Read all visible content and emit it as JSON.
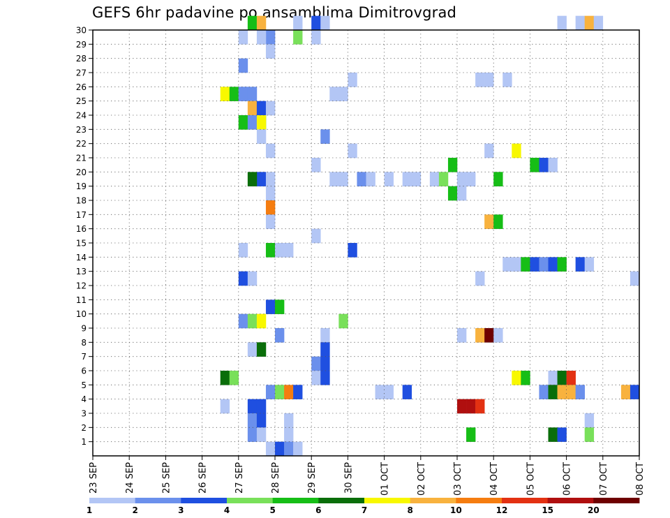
{
  "chart_data": {
    "type": "heatmap",
    "title": "GEFS 6hr padavine po ansamblima Dimitrovgrad",
    "xlabel": "",
    "ylabel": "",
    "x_labels": [
      "23 SEP",
      "24 SEP",
      "25 SEP",
      "26 SEP",
      "27 SEP",
      "28 SEP",
      "29 SEP",
      "30 SEP",
      "01 OCT",
      "02 OCT",
      "03 OCT",
      "04 OCT",
      "05 OCT",
      "06 OCT",
      "07 OCT",
      "08 OCT"
    ],
    "x_unit": "6-hour steps",
    "xlim": [
      0,
      60
    ],
    "y_labels": [
      "1",
      "2",
      "3",
      "4",
      "5",
      "6",
      "7",
      "8",
      "9",
      "10",
      "11",
      "12",
      "13",
      "14",
      "15",
      "16",
      "17",
      "18",
      "19",
      "20",
      "21",
      "22",
      "23",
      "24",
      "25",
      "26",
      "27",
      "28",
      "29",
      "30"
    ],
    "ylim": [
      0,
      30
    ],
    "grid": true,
    "colorbar": {
      "position": "bottom",
      "ticks": [
        "1",
        "2",
        "3",
        "4",
        "5",
        "6",
        "7",
        "8",
        "10",
        "12",
        "15",
        "20"
      ],
      "colors": [
        "#b3c6f5",
        "#6b90ec",
        "#1f4fe0",
        "#79e05a",
        "#16be16",
        "#0a6e0a",
        "#f8f800",
        "#f8b23e",
        "#f57d10",
        "#e33112",
        "#b00f0f",
        "#6e0000"
      ]
    },
    "cells": [
      [
        17,
        30,
        4
      ],
      [
        18,
        30,
        7
      ],
      [
        22,
        30,
        0
      ],
      [
        24,
        30,
        2
      ],
      [
        25,
        30,
        0
      ],
      [
        51,
        30,
        0
      ],
      [
        53,
        30,
        0
      ],
      [
        54,
        30,
        7
      ],
      [
        55,
        30,
        0
      ],
      [
        16,
        29,
        0
      ],
      [
        19,
        29,
        1
      ],
      [
        22,
        29,
        3
      ],
      [
        24,
        29,
        0
      ],
      [
        18,
        29,
        0
      ],
      [
        19,
        28,
        0
      ],
      [
        16,
        27,
        1
      ],
      [
        28,
        26,
        0
      ],
      [
        42,
        26,
        0
      ],
      [
        43,
        26,
        0
      ],
      [
        45,
        26,
        0
      ],
      [
        14,
        25,
        6
      ],
      [
        15,
        25,
        4
      ],
      [
        16,
        25,
        0
      ],
      [
        26,
        25,
        0
      ],
      [
        27,
        25,
        0
      ],
      [
        16,
        25,
        1
      ],
      [
        17,
        25,
        1
      ],
      [
        17,
        24,
        7
      ],
      [
        18,
        24,
        2
      ],
      [
        19,
        24,
        0
      ],
      [
        16,
        23,
        3
      ],
      [
        17,
        23,
        6
      ],
      [
        18,
        23,
        4
      ],
      [
        16,
        23,
        4
      ],
      [
        17,
        23,
        1
      ],
      [
        18,
        23,
        6
      ],
      [
        18,
        22,
        0
      ],
      [
        25,
        22,
        1
      ],
      [
        19,
        21,
        0
      ],
      [
        28,
        21,
        0
      ],
      [
        43,
        21,
        0
      ],
      [
        46,
        21,
        6
      ],
      [
        24,
        20,
        0
      ],
      [
        39,
        20,
        4
      ],
      [
        48,
        20,
        4
      ],
      [
        49,
        20,
        2
      ],
      [
        50,
        20,
        0
      ],
      [
        18,
        19,
        2
      ],
      [
        19,
        19,
        0
      ],
      [
        26,
        19,
        0
      ],
      [
        27,
        19,
        0
      ],
      [
        29,
        19,
        1
      ],
      [
        30,
        19,
        0
      ],
      [
        32,
        19,
        0
      ],
      [
        34,
        19,
        0
      ],
      [
        17,
        19,
        5
      ],
      [
        35,
        19,
        0
      ],
      [
        37,
        19,
        0
      ],
      [
        38,
        19,
        3
      ],
      [
        40,
        19,
        0
      ],
      [
        41,
        19,
        0
      ],
      [
        44,
        19,
        4
      ],
      [
        19,
        18,
        0
      ],
      [
        39,
        18,
        4
      ],
      [
        40,
        18,
        0
      ],
      [
        19,
        17,
        8
      ],
      [
        19,
        16,
        0
      ],
      [
        43,
        16,
        7
      ],
      [
        44,
        16,
        4
      ],
      [
        24,
        15,
        0
      ],
      [
        16,
        14,
        0
      ],
      [
        19,
        14,
        4
      ],
      [
        20,
        14,
        0
      ],
      [
        21,
        14,
        0
      ],
      [
        28,
        14,
        2
      ],
      [
        45,
        13,
        0
      ],
      [
        46,
        13,
        0
      ],
      [
        47,
        13,
        4
      ],
      [
        48,
        13,
        2
      ],
      [
        49,
        13,
        1
      ],
      [
        50,
        13,
        2
      ],
      [
        51,
        13,
        4
      ],
      [
        53,
        13,
        2
      ],
      [
        54,
        13,
        0
      ],
      [
        16,
        12,
        2
      ],
      [
        17,
        12,
        0
      ],
      [
        42,
        12,
        0
      ],
      [
        59,
        12,
        0
      ],
      [
        19,
        10,
        2
      ],
      [
        20,
        10,
        4
      ],
      [
        16,
        9,
        1
      ],
      [
        17,
        9,
        3
      ],
      [
        18,
        9,
        6
      ],
      [
        27,
        9,
        3
      ],
      [
        20,
        8,
        1
      ],
      [
        25,
        8,
        0
      ],
      [
        40,
        8,
        0
      ],
      [
        42,
        8,
        7
      ],
      [
        43,
        8,
        11
      ],
      [
        44,
        8,
        0
      ],
      [
        17,
        7,
        0
      ],
      [
        18,
        7,
        5
      ],
      [
        25,
        7,
        2
      ],
      [
        24,
        6,
        1
      ],
      [
        25,
        6,
        2
      ],
      [
        24,
        5,
        0
      ],
      [
        25,
        5,
        2
      ],
      [
        14,
        5,
        5
      ],
      [
        15,
        5,
        3
      ],
      [
        46,
        5,
        6
      ],
      [
        47,
        5,
        4
      ],
      [
        50,
        5,
        0
      ],
      [
        51,
        5,
        5
      ],
      [
        52,
        5,
        9
      ],
      [
        19,
        4,
        1
      ],
      [
        20,
        4,
        3
      ],
      [
        21,
        4,
        8
      ],
      [
        22,
        4,
        2
      ],
      [
        31,
        4,
        0
      ],
      [
        32,
        4,
        0
      ],
      [
        34,
        4,
        2
      ],
      [
        49,
        4,
        1
      ],
      [
        50,
        4,
        5
      ],
      [
        51,
        4,
        7
      ],
      [
        52,
        4,
        7
      ],
      [
        53,
        4,
        1
      ],
      [
        58,
        4,
        7
      ],
      [
        59,
        4,
        2
      ],
      [
        14,
        3,
        0
      ],
      [
        17,
        3,
        2
      ],
      [
        18,
        3,
        2
      ],
      [
        40,
        3,
        10
      ],
      [
        41,
        3,
        10
      ],
      [
        42,
        3,
        9
      ],
      [
        17,
        2,
        1
      ],
      [
        18,
        2,
        2
      ],
      [
        21,
        2,
        0
      ],
      [
        54,
        2,
        0
      ],
      [
        17,
        1,
        1
      ],
      [
        18,
        1,
        0
      ],
      [
        21,
        1,
        0
      ],
      [
        41,
        1,
        4
      ],
      [
        50,
        1,
        5
      ],
      [
        51,
        1,
        2
      ],
      [
        54,
        1,
        3
      ],
      [
        19,
        0,
        0
      ],
      [
        20,
        0,
        2
      ],
      [
        21,
        0,
        1
      ],
      [
        22,
        0,
        0
      ]
    ]
  }
}
